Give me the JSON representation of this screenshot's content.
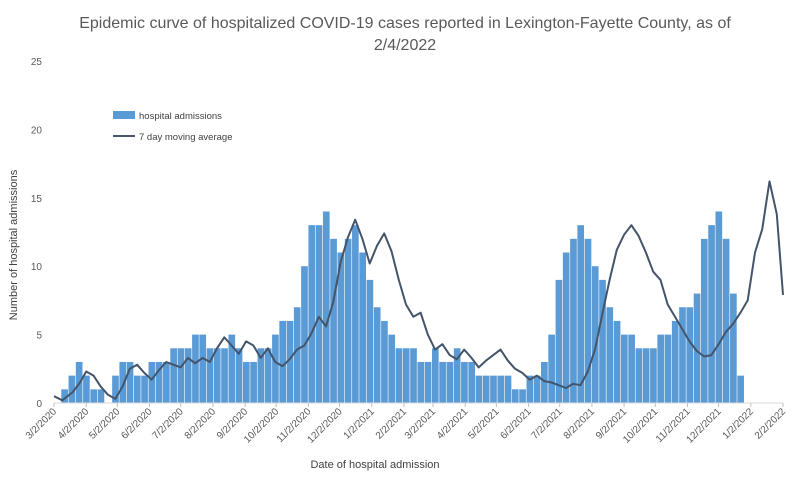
{
  "chart_data": {
    "type": "bar",
    "title_line1": "Epidemic curve of hospitalized COVID-19 cases reported in Lexington-Fayette County, as of",
    "title_line2": "2/4/2022",
    "xlabel": "Date of hospital admission",
    "ylabel": "Number of hospital admissions",
    "ylim": [
      0,
      25
    ],
    "yticks": [
      0,
      5,
      10,
      15,
      20,
      25
    ],
    "xlim": [
      "3/2/2020",
      "2/2/2022"
    ],
    "xticks": [
      "3/2/2020",
      "4/2/2020",
      "5/2/2020",
      "6/2/2020",
      "7/2/2020",
      "8/2/2020",
      "9/2/2020",
      "10/2/2020",
      "11/2/2020",
      "12/2/2020",
      "1/2/2021",
      "2/2/2021",
      "3/2/2021",
      "4/2/2021",
      "5/2/2021",
      "6/2/2021",
      "7/2/2021",
      "8/2/2021",
      "9/2/2021",
      "10/2/2021",
      "11/2/2021",
      "12/2/2021",
      "1/2/2022",
      "2/2/2022"
    ],
    "grid": false,
    "legend_position": "top-left",
    "series": [
      {
        "name": "hospital admissions",
        "kind": "bar",
        "color": "#5b9bd5",
        "weekly_values": [
          0,
          1,
          2,
          3,
          2,
          1,
          1,
          0,
          2,
          3,
          3,
          2,
          2,
          3,
          3,
          3,
          4,
          4,
          4,
          5,
          5,
          4,
          4,
          4,
          5,
          4,
          3,
          3,
          4,
          4,
          5,
          6,
          6,
          7,
          10,
          13,
          13,
          14,
          12,
          11,
          12,
          13,
          11,
          9,
          7,
          6,
          5,
          4,
          4,
          4,
          3,
          3,
          4,
          3,
          3,
          4,
          3,
          3,
          2,
          2,
          2,
          2,
          2,
          1,
          1,
          2,
          2,
          3,
          5,
          9,
          11,
          12,
          13,
          12,
          10,
          9,
          7,
          6,
          5,
          5,
          4,
          4,
          4,
          5,
          5,
          6,
          7,
          7,
          8,
          12,
          13,
          14,
          12,
          8,
          2
        ]
      },
      {
        "name": "7 day moving average",
        "kind": "line",
        "color": "#44546a",
        "dates": [
          "3/2/2020",
          "3/10/2020",
          "3/20/2020",
          "3/27/2020",
          "4/2/2020",
          "4/9/2020",
          "4/16/2020",
          "4/23/2020",
          "4/30/2020",
          "5/7/2020",
          "5/14/2020",
          "5/21/2020",
          "5/28/2020",
          "6/4/2020",
          "6/11/2020",
          "6/18/2020",
          "6/25/2020",
          "7/2/2020",
          "7/9/2020",
          "7/16/2020",
          "7/23/2020",
          "7/30/2020",
          "8/6/2020",
          "8/13/2020",
          "8/20/2020",
          "8/27/2020",
          "9/3/2020",
          "9/10/2020",
          "9/17/2020",
          "9/24/2020",
          "10/1/2020",
          "10/8/2020",
          "10/15/2020",
          "10/22/2020",
          "10/29/2020",
          "11/5/2020",
          "11/12/2020",
          "11/19/2020",
          "11/26/2020",
          "12/3/2020",
          "12/10/2020",
          "12/17/2020",
          "12/24/2020",
          "12/31/2020",
          "1/7/2021",
          "1/14/2021",
          "1/21/2021",
          "1/28/2021",
          "2/4/2021",
          "2/11/2021",
          "2/18/2021",
          "2/25/2021",
          "3/4/2021",
          "3/11/2021",
          "3/18/2021",
          "3/25/2021",
          "4/1/2021",
          "4/8/2021",
          "4/15/2021",
          "4/22/2021",
          "4/29/2021",
          "5/6/2021",
          "5/13/2021",
          "5/20/2021",
          "5/27/2021",
          "6/3/2021",
          "6/10/2021",
          "6/17/2021",
          "6/24/2021",
          "7/1/2021",
          "7/8/2021",
          "7/15/2021",
          "7/22/2021",
          "7/29/2021",
          "8/5/2021",
          "8/12/2021",
          "8/19/2021",
          "8/26/2021",
          "9/2/2021",
          "9/9/2021",
          "9/16/2021",
          "9/23/2021",
          "9/30/2021",
          "10/7/2021",
          "10/14/2021",
          "10/21/2021",
          "10/28/2021",
          "11/4/2021",
          "11/11/2021",
          "11/18/2021",
          "11/25/2021",
          "12/2/2021",
          "12/9/2021",
          "12/16/2021",
          "12/23/2021",
          "12/30/2021",
          "1/6/2022",
          "1/13/2022",
          "1/20/2022",
          "1/27/2022",
          "2/2/2022"
        ],
        "values": [
          0.5,
          0.2,
          0.8,
          1.5,
          2.3,
          2.0,
          1.2,
          0.6,
          0.3,
          1.2,
          2.5,
          2.8,
          2.2,
          1.7,
          2.4,
          3.0,
          2.8,
          2.6,
          3.3,
          2.9,
          3.3,
          3.0,
          4.0,
          4.8,
          4.2,
          3.6,
          4.5,
          4.2,
          3.3,
          4.0,
          3.0,
          2.7,
          3.2,
          3.9,
          4.2,
          5.1,
          6.3,
          5.6,
          7.4,
          10.3,
          12.1,
          13.4,
          12.0,
          10.2,
          11.5,
          12.4,
          11.1,
          9.0,
          7.2,
          6.3,
          6.6,
          5.0,
          3.9,
          4.3,
          3.5,
          3.2,
          3.9,
          3.3,
          2.6,
          3.1,
          3.5,
          3.9,
          3.1,
          2.5,
          2.2,
          1.7,
          2.0,
          1.6,
          1.5,
          1.3,
          1.1,
          1.4,
          1.3,
          2.3,
          3.9,
          6.5,
          9.0,
          11.2,
          12.3,
          13.0,
          12.2,
          11.0,
          9.6,
          9.0,
          7.2,
          6.3,
          5.4,
          4.5,
          3.8,
          3.4,
          3.5,
          4.3,
          5.2,
          5.8,
          6.6,
          7.5,
          11.0,
          12.7,
          16.2,
          13.8,
          7.9
        ]
      }
    ]
  }
}
